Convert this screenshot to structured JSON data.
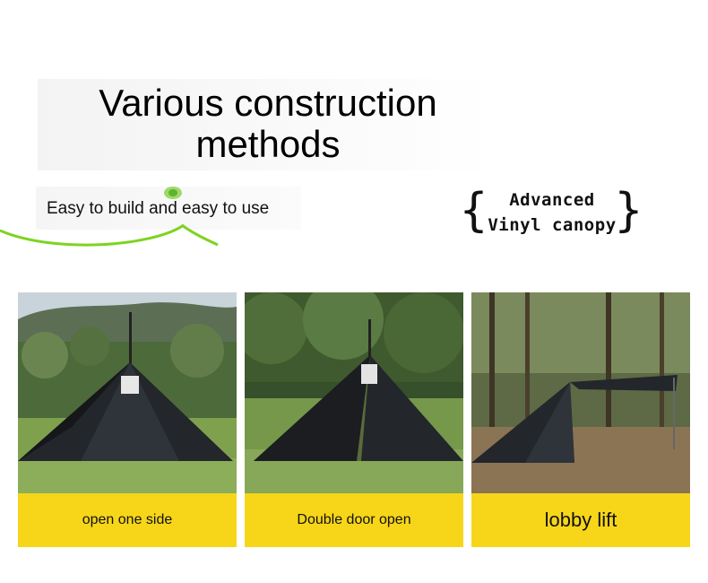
{
  "header": {
    "title": "Various construction methods",
    "subtitle": "Easy to build and easy to use",
    "badge_line1": "Advanced",
    "badge_line2": "Vinyl canopy"
  },
  "cards": [
    {
      "caption": "open one side",
      "image": "black pyramid tent with one side open on grass"
    },
    {
      "caption": "Double door open",
      "image": "black pyramid tent with double door open on grass"
    },
    {
      "caption": "lobby lift",
      "image": "black tent with lifted lobby canopy in forest"
    }
  ],
  "colors": {
    "caption_bg": "#f7d619",
    "accent_green": "#7ed321",
    "tent": "#23262b"
  },
  "icons": [
    "leaf-icon",
    "left-brace-icon",
    "right-brace-icon"
  ]
}
